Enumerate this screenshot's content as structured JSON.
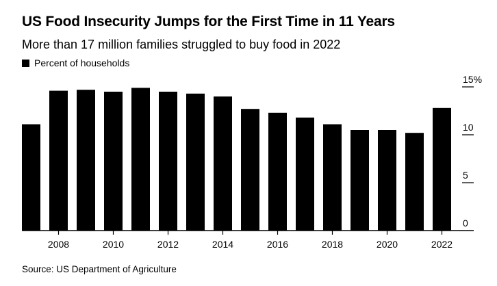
{
  "chart_data": {
    "type": "bar",
    "title": "US Food Insecurity Jumps for the First Time in 11 Years",
    "subtitle": "More than 17 million families struggled to buy food in 2022",
    "legend": "Percent of households",
    "legend_placement": "top-left",
    "source": "Source: US Department of Agriculture",
    "categories": [
      "2007",
      "2008",
      "2009",
      "2010",
      "2011",
      "2012",
      "2013",
      "2014",
      "2015",
      "2016",
      "2017",
      "2018",
      "2019",
      "2020",
      "2021",
      "2022"
    ],
    "values": [
      11.1,
      14.6,
      14.7,
      14.5,
      14.9,
      14.5,
      14.3,
      14.0,
      12.7,
      12.3,
      11.8,
      11.1,
      10.5,
      10.5,
      10.2,
      12.8
    ],
    "x_tick_labels": [
      "2008",
      "2010",
      "2012",
      "2014",
      "2016",
      "2018",
      "2020",
      "2022"
    ],
    "y_ticks": [
      0,
      5,
      10,
      15
    ],
    "y_tick_labels": [
      "0",
      "5",
      "10",
      "15%"
    ],
    "y_axis_side": "right",
    "ylim": [
      0,
      15
    ],
    "grid": false,
    "bar_color": "#000000"
  }
}
